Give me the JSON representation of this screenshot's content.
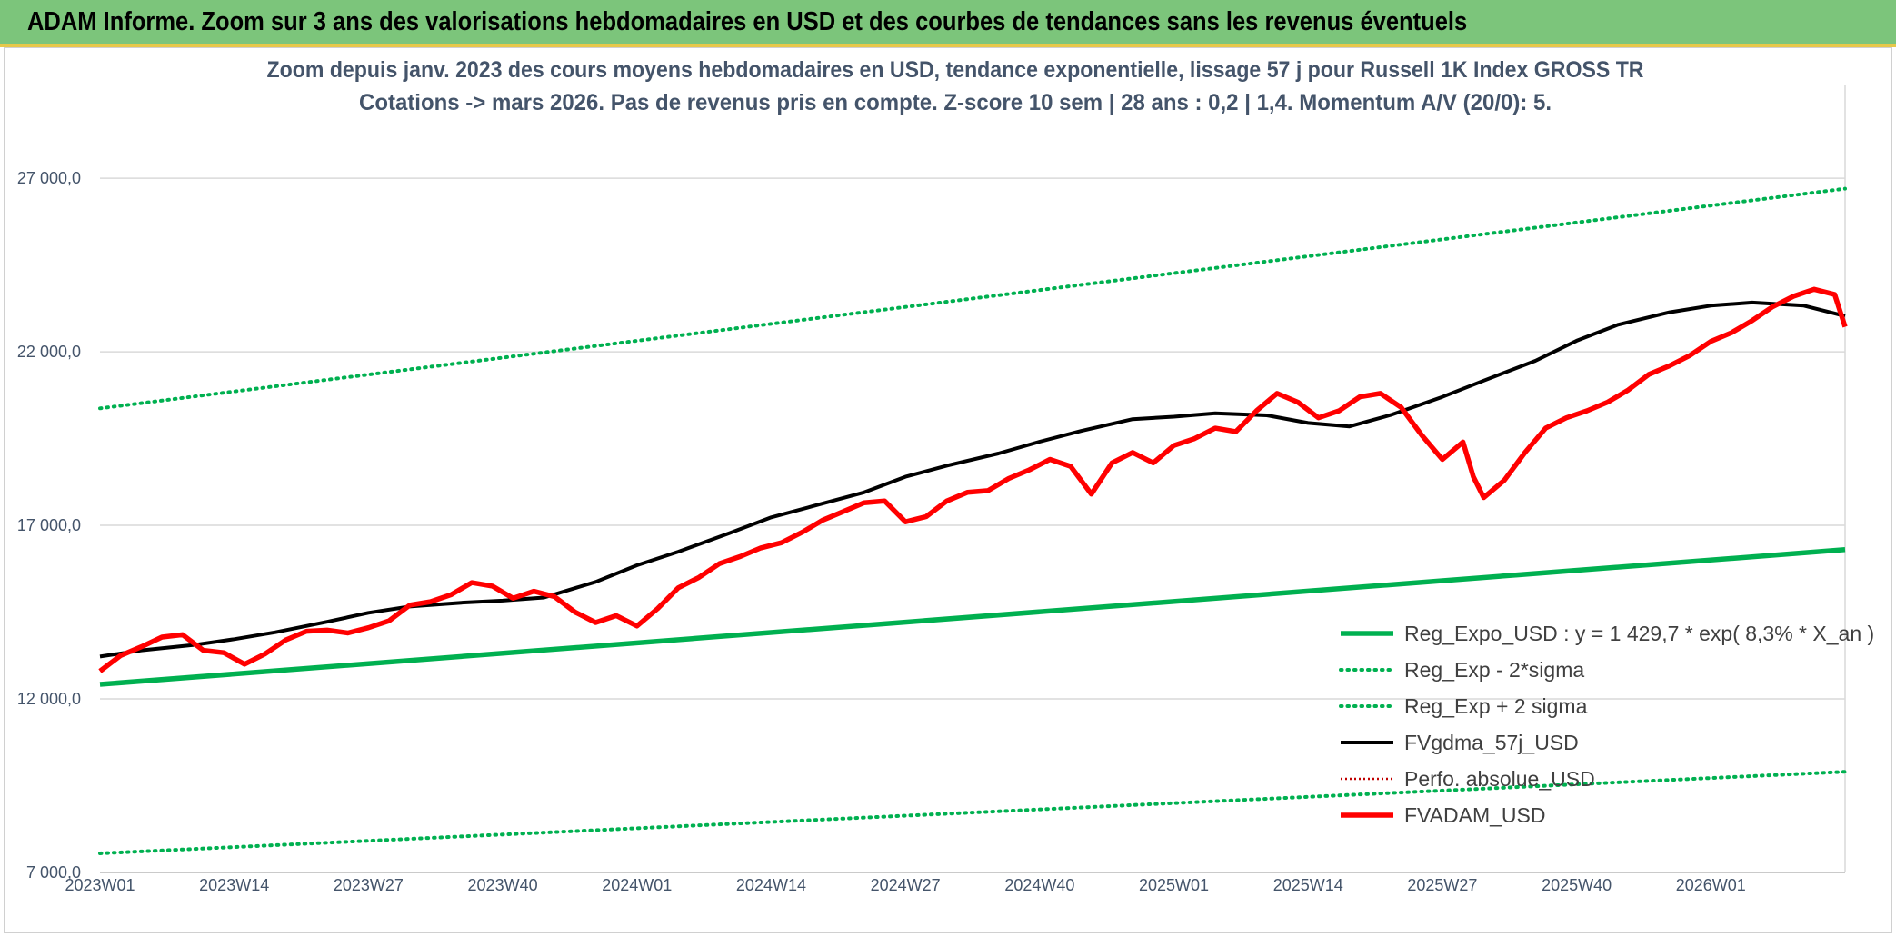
{
  "banner": {
    "title": "ADAM Informe. Zoom sur 3 ans des valorisations hebdomadaires en USD et des courbes de tendances sans les revenus éventuels"
  },
  "colors": {
    "banner_bg": "#7cc57b",
    "regression": "#00b050",
    "smoothed": "#000000",
    "price": "#ff0000",
    "perf": "#c00000"
  },
  "chart_data": {
    "type": "line",
    "title_lines": [
      "Zoom depuis janv. 2023 des cours moyens hebdomadaires en USD, tendance exponentielle, lissage 57 j pour Russell 1K Index GROSS TR",
      "Cotations -> mars 2026. Pas de revenus pris en compte. Z-score 10 sem | 28 ans : 0,2 | 1,4. Momentum A/V (20/0): 5."
    ],
    "xlabel": "",
    "ylabel": "",
    "ylim": [
      7000,
      29700
    ],
    "grid": "horizontal",
    "legend_position": "right",
    "y_ticks": [
      "7 000,0",
      "12 000,0",
      "17 000,0",
      "22 000,0",
      "27 000,0"
    ],
    "y_tick_values": [
      7000,
      12000,
      17000,
      22000,
      27000
    ],
    "x_ticks": [
      "2023W01",
      "2023W14",
      "2023W27",
      "2023W40",
      "2024W01",
      "2024W14",
      "2024W27",
      "2024W40",
      "2025W01",
      "2025W14",
      "2025W27",
      "2025W40",
      "2026W01"
    ],
    "x_tick_weeks": [
      0,
      13,
      26,
      39,
      52,
      65,
      78,
      91,
      104,
      117,
      130,
      143,
      156
    ],
    "x_range_weeks": [
      0,
      169
    ],
    "series": [
      {
        "name": "Reg_Expo_USD : y = 1 429,7 * exp( 8,3% *  X_an )",
        "style": "thick",
        "color": "#00b050",
        "points": [
          [
            0,
            12420
          ],
          [
            169,
            16300
          ]
        ]
      },
      {
        "name": "Reg_Exp - 2*sigma",
        "style": "dotted",
        "color": "#00b050",
        "points": [
          [
            0,
            7550
          ],
          [
            169,
            9900
          ]
        ]
      },
      {
        "name": "Reg_Exp + 2 sigma",
        "style": "dotted",
        "color": "#00b050",
        "points": [
          [
            0,
            20370
          ],
          [
            169,
            26700
          ]
        ]
      },
      {
        "name": "FVgdma_57j_USD",
        "style": "solid",
        "color": "#000000",
        "points": [
          [
            0,
            13220
          ],
          [
            4,
            13400
          ],
          [
            9,
            13550
          ],
          [
            13,
            13720
          ],
          [
            17,
            13920
          ],
          [
            22,
            14220
          ],
          [
            26,
            14480
          ],
          [
            30,
            14660
          ],
          [
            35,
            14770
          ],
          [
            39,
            14830
          ],
          [
            43,
            14920
          ],
          [
            48,
            15370
          ],
          [
            52,
            15850
          ],
          [
            56,
            16240
          ],
          [
            61,
            16780
          ],
          [
            65,
            17230
          ],
          [
            69,
            17550
          ],
          [
            74,
            17950
          ],
          [
            78,
            18400
          ],
          [
            82,
            18720
          ],
          [
            87,
            19070
          ],
          [
            91,
            19410
          ],
          [
            95,
            19720
          ],
          [
            100,
            20060
          ],
          [
            104,
            20130
          ],
          [
            108,
            20230
          ],
          [
            113,
            20170
          ],
          [
            117,
            19950
          ],
          [
            121,
            19850
          ],
          [
            125,
            20180
          ],
          [
            130,
            20700
          ],
          [
            134,
            21170
          ],
          [
            139,
            21740
          ],
          [
            143,
            22320
          ],
          [
            147,
            22780
          ],
          [
            152,
            23140
          ],
          [
            156,
            23330
          ],
          [
            160,
            23420
          ],
          [
            165,
            23330
          ],
          [
            169,
            23030
          ]
        ]
      },
      {
        "name": "Perfo. absolue_USD",
        "style": "dotted-thin",
        "color": "#c00000",
        "points": []
      },
      {
        "name": "FVADAM_USD",
        "style": "thick",
        "color": "#ff0000",
        "points": [
          [
            0,
            12800
          ],
          [
            2,
            13250
          ],
          [
            4,
            13500
          ],
          [
            6,
            13780
          ],
          [
            8,
            13850
          ],
          [
            10,
            13400
          ],
          [
            12,
            13330
          ],
          [
            14,
            13000
          ],
          [
            16,
            13300
          ],
          [
            18,
            13700
          ],
          [
            20,
            13950
          ],
          [
            22,
            13980
          ],
          [
            24,
            13900
          ],
          [
            26,
            14050
          ],
          [
            28,
            14250
          ],
          [
            30,
            14700
          ],
          [
            32,
            14800
          ],
          [
            34,
            15000
          ],
          [
            36,
            15350
          ],
          [
            38,
            15250
          ],
          [
            40,
            14900
          ],
          [
            42,
            15100
          ],
          [
            44,
            14950
          ],
          [
            46,
            14500
          ],
          [
            48,
            14200
          ],
          [
            50,
            14400
          ],
          [
            52,
            14100
          ],
          [
            54,
            14600
          ],
          [
            56,
            15200
          ],
          [
            58,
            15500
          ],
          [
            60,
            15900
          ],
          [
            62,
            16100
          ],
          [
            64,
            16350
          ],
          [
            66,
            16500
          ],
          [
            68,
            16800
          ],
          [
            70,
            17150
          ],
          [
            72,
            17400
          ],
          [
            74,
            17650
          ],
          [
            76,
            17700
          ],
          [
            78,
            17100
          ],
          [
            80,
            17250
          ],
          [
            82,
            17700
          ],
          [
            84,
            17950
          ],
          [
            86,
            18000
          ],
          [
            88,
            18350
          ],
          [
            90,
            18600
          ],
          [
            92,
            18900
          ],
          [
            94,
            18700
          ],
          [
            96,
            17900
          ],
          [
            98,
            18800
          ],
          [
            100,
            19100
          ],
          [
            102,
            18800
          ],
          [
            104,
            19300
          ],
          [
            106,
            19500
          ],
          [
            108,
            19800
          ],
          [
            110,
            19700
          ],
          [
            112,
            20300
          ],
          [
            114,
            20800
          ],
          [
            116,
            20550
          ],
          [
            118,
            20100
          ],
          [
            120,
            20300
          ],
          [
            122,
            20700
          ],
          [
            124,
            20800
          ],
          [
            126,
            20400
          ],
          [
            128,
            19600
          ],
          [
            130,
            18900
          ],
          [
            132,
            19400
          ],
          [
            133,
            18400
          ],
          [
            134,
            17800
          ],
          [
            136,
            18300
          ],
          [
            138,
            19100
          ],
          [
            140,
            19800
          ],
          [
            142,
            20100
          ],
          [
            144,
            20300
          ],
          [
            146,
            20550
          ],
          [
            148,
            20900
          ],
          [
            150,
            21350
          ],
          [
            152,
            21600
          ],
          [
            154,
            21900
          ],
          [
            156,
            22300
          ],
          [
            158,
            22550
          ],
          [
            160,
            22900
          ],
          [
            162,
            23300
          ],
          [
            164,
            23600
          ],
          [
            166,
            23800
          ],
          [
            168,
            23650
          ],
          [
            169,
            22720
          ]
        ]
      }
    ],
    "legend_entries": [
      "Reg_Expo_USD : y = 1 429,7 * exp( 8,3% *  X_an )",
      "Reg_Exp - 2*sigma",
      "Reg_Exp + 2 sigma",
      "FVgdma_57j_USD",
      "Perfo. absolue_USD",
      "FVADAM_USD"
    ]
  }
}
